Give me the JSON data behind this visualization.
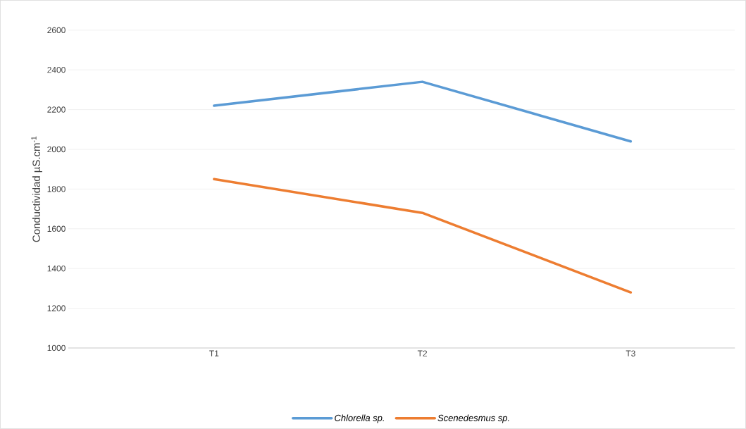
{
  "chart_data": {
    "type": "line",
    "ylabel": "Conductividad µS.cm$^{-1}$",
    "categories": [
      "T1",
      "T2",
      "T3"
    ],
    "series": [
      {
        "name": "Chlorella sp.",
        "color": "#5b9bd5",
        "values": [
          2220,
          2340,
          2040
        ]
      },
      {
        "name": "Scenedesmus sp.",
        "color": "#ed7d31",
        "values": [
          1850,
          1680,
          1280
        ]
      }
    ],
    "ylim": [
      1000,
      2600
    ],
    "yticks": [
      1000,
      1200,
      1400,
      1600,
      1800,
      2000,
      2200,
      2400,
      2600
    ],
    "grid": "y",
    "legend": "bottom",
    "marker": "none",
    "line_style": "solid"
  }
}
